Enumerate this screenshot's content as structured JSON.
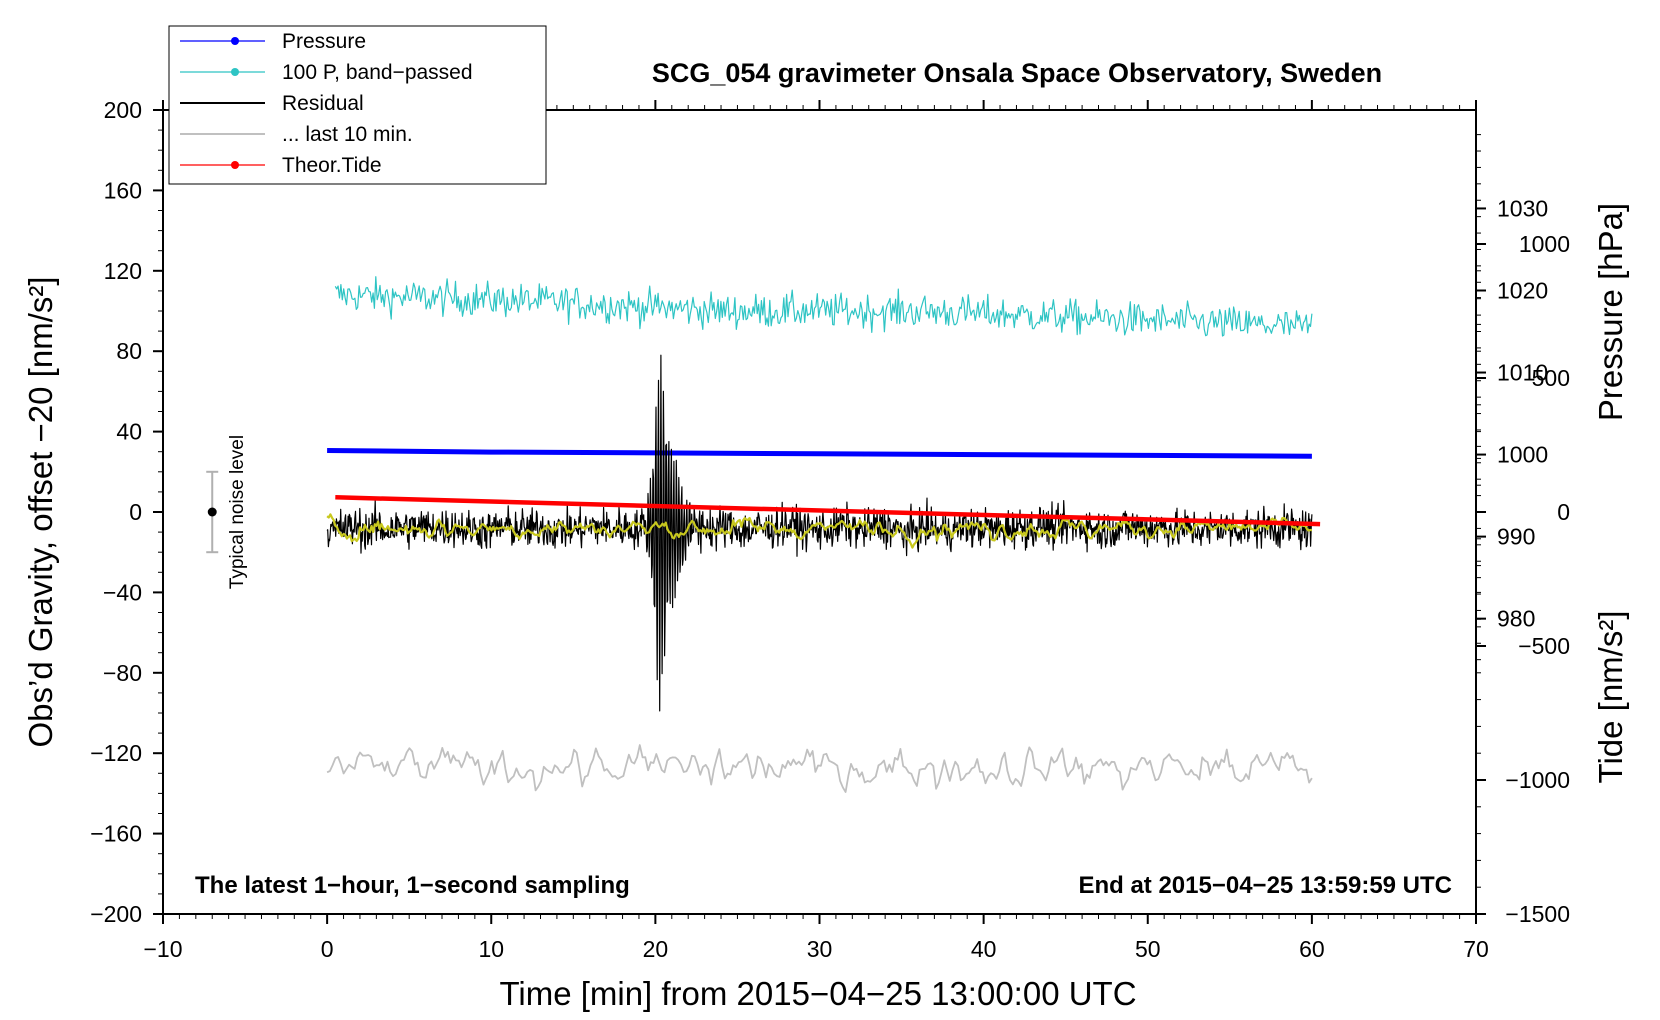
{
  "chart_data": {
    "type": "line",
    "title": "SCG_054 gravimeter Onsala Space Observatory, Sweden",
    "xlabel": "Time [min] from 2015−04−25 13:00:00 UTC",
    "ylabel": "Obs’d Gravity, offset −20 [nm/s²]",
    "ylabel_right_pressure": "Pressure [hPa]",
    "ylabel_right_tide": "Tide [nm/s²]",
    "xlim": [
      -10,
      70
    ],
    "ylim": [
      -200,
      200
    ],
    "pressure_lim": [
      944,
      1042
    ],
    "tide_lim": [
      -1500,
      1500
    ],
    "x_ticks": [
      "−10",
      "0",
      "10",
      "20",
      "30",
      "40",
      "50",
      "60",
      "70"
    ],
    "y_ticks": [
      "−200",
      "−160",
      "−120",
      "−80",
      "−40",
      "0",
      "40",
      "80",
      "120",
      "160",
      "200"
    ],
    "pressure_ticks": [
      "980",
      "990",
      "1000",
      "1010",
      "1020",
      "1030"
    ],
    "tide_ticks": [
      "−1500",
      "−1000",
      "−500",
      "0",
      "500",
      "1000"
    ],
    "grid": false,
    "legend_position": "top-left",
    "legend": [
      {
        "label": "Pressure",
        "color": "#0000ff",
        "marker": true
      },
      {
        "label": "100 P, band−passed",
        "color": "#2ec4c4",
        "marker": true
      },
      {
        "label": "Residual",
        "color": "#000000",
        "marker": false
      },
      {
        "label": "... last 10 min.",
        "color": "#c0c0c0",
        "marker": false
      },
      {
        "label": "Theor.Tide",
        "color": "#ff0000",
        "marker": true
      }
    ],
    "annotations": {
      "sampling": "The latest 1−hour, 1−second sampling",
      "end_time": "End at 2015−04−25 13:59:59 UTC",
      "noise_label": "Typical noise level"
    },
    "noise_bar": {
      "x": -7,
      "y": 0,
      "low": -20,
      "high": 20
    },
    "series": [
      {
        "name": "Pressure",
        "axis": "pressure",
        "color": "#0000ff",
        "x": [
          0,
          10,
          20,
          30,
          40,
          50,
          60
        ],
        "values": [
          1000.5,
          1000.3,
          1000.2,
          1000.1,
          1000.0,
          999.9,
          999.8
        ]
      },
      {
        "name": "100 P, band−passed",
        "axis": "gravity",
        "color": "#2ec4c4",
        "x_range": [
          0.5,
          60
        ],
        "values_center": [
          108,
          105,
          100,
          100,
          96,
          92
        ],
        "noise_amplitude": 12,
        "min": 71,
        "max": 131
      },
      {
        "name": "Residual",
        "axis": "gravity",
        "color": "#000000",
        "x_range": [
          0,
          60
        ],
        "center": -8,
        "noise_amplitude": 12,
        "quake": {
          "x": 20.3,
          "max": 78,
          "min": -100
        }
      },
      {
        "name": "Residual smoothed",
        "axis": "gravity",
        "color": "#c8c81e",
        "x_range": [
          0,
          60
        ],
        "center": -8,
        "noise_amplitude": 7
      },
      {
        "name": "... last 10 min.",
        "axis": "gravity",
        "color": "#c0c0c0",
        "x_range": [
          0,
          60
        ],
        "center": -127,
        "noise_amplitude": 12,
        "min": -141,
        "max": -100
      },
      {
        "name": "Theor.Tide",
        "axis": "tide",
        "color": "#ff0000",
        "x": [
          0.5,
          60.5
        ],
        "values": [
          55,
          -45
        ]
      }
    ]
  }
}
